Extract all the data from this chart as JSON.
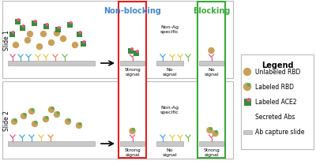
{
  "slide1_label": "Slide 1",
  "slide2_label": "Slide 2",
  "nonblocking_label": "Non-blocking",
  "blocking_label": "Blocking",
  "non_ag_specific": "Non-Ag\nspecific",
  "strong_signal": "Strong\nsignal",
  "no_signal": "No\nsignal",
  "legend_title": "Legend",
  "legend_items": [
    "Unlabeled RBD",
    "Labeled RBD",
    "Labeled ACE2",
    "Secreted Abs",
    "Ab capture slide"
  ],
  "colors": {
    "unlabeled_rbd": "#C8A05A",
    "labeled_rbd_body": "#C8A05A",
    "labeled_rbd_dot": "#5BAD4E",
    "labeled_ace2_body": "#3A8C3A",
    "labeled_ace2_dot": "#E8558A",
    "ab_magenta": "#E8558A",
    "ab_blue": "#4AA8D8",
    "ab_yellow": "#E8C84A",
    "ab_orange": "#E88A4A",
    "ab_green": "#7ABD5A",
    "slide_color": "#C8C8C8",
    "nonblocking_box": "#E82020",
    "blocking_box": "#3AAA3A",
    "nonblocking_text": "#4488CC",
    "blocking_text": "#3AAA3A",
    "bg": "#FFFFFF",
    "outer_border": "#BBBBBB"
  },
  "fs_label": 5.5,
  "fs_signal": 4.5,
  "fs_header": 7,
  "fs_legend_title": 7,
  "fs_legend_item": 5.5
}
